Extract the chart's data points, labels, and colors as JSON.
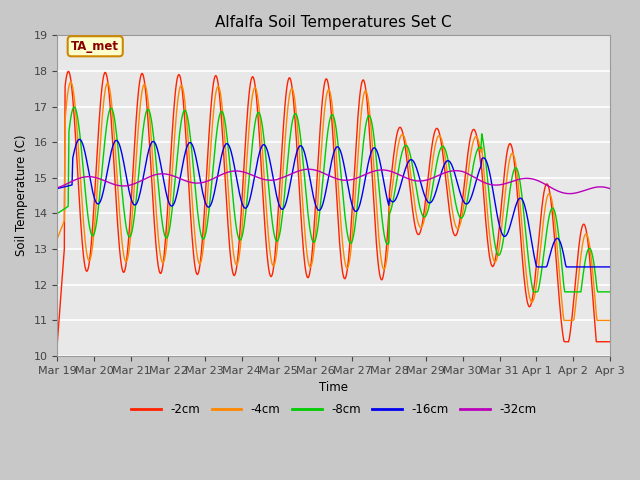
{
  "title": "Alfalfa Soil Temperatures Set C",
  "xlabel": "Time",
  "ylabel": "Soil Temperature (C)",
  "ylim": [
    10.0,
    19.0
  ],
  "yticks": [
    10.0,
    11.0,
    12.0,
    13.0,
    14.0,
    15.0,
    16.0,
    17.0,
    18.0,
    19.0
  ],
  "fig_bg": "#c8c8c8",
  "plot_bg": "#e8e8e8",
  "grid_color": "#ffffff",
  "annotation_text": "TA_met",
  "annotation_bg": "#ffffcc",
  "annotation_border": "#cc8800",
  "legend_entries": [
    "-2cm",
    "-4cm",
    "-8cm",
    "-16cm",
    "-32cm"
  ],
  "line_colors": [
    "#ff2200",
    "#ff8800",
    "#00cc00",
    "#0000ee",
    "#bb00bb"
  ],
  "xtick_labels": [
    "Mar 19",
    "Mar 20",
    "Mar 21",
    "Mar 22",
    "Mar 23",
    "Mar 24",
    "Mar 25",
    "Mar 26",
    "Mar 27",
    "Mar 28",
    "Mar 29",
    "Mar 30",
    "Mar 31",
    "Apr 1",
    "Apr 2",
    "Apr 3"
  ]
}
